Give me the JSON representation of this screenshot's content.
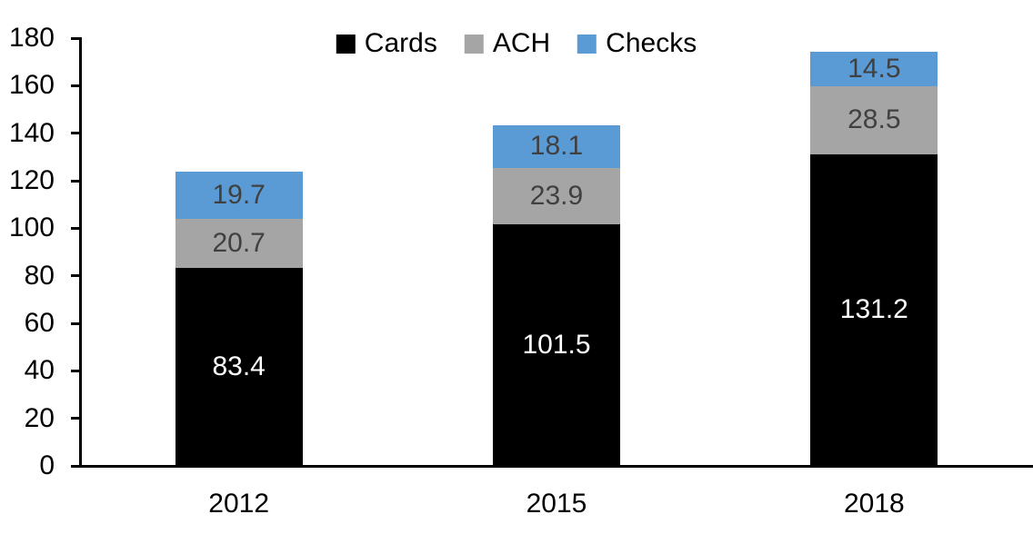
{
  "chart_data": {
    "type": "bar",
    "stacked": true,
    "title": "",
    "xlabel": "",
    "ylabel": "",
    "categories": [
      "2012",
      "2015",
      "2018"
    ],
    "series": [
      {
        "name": "Cards",
        "color": "#000000",
        "label_color": "#FFFFFF",
        "values": [
          83.4,
          101.5,
          131.2
        ]
      },
      {
        "name": "ACH",
        "color": "#A5A5A5",
        "label_color": "#404040",
        "values": [
          20.7,
          23.9,
          28.5
        ]
      },
      {
        "name": "Checks",
        "color": "#5B9BD5",
        "label_color": "#404040",
        "values": [
          19.7,
          18.1,
          14.5
        ]
      }
    ],
    "ylim": [
      0,
      180
    ],
    "yticks": [
      0,
      20,
      40,
      60,
      80,
      100,
      120,
      140,
      160,
      180
    ],
    "grid": false,
    "value_labels": true,
    "legend_position": "top-center",
    "axis_color": "#000000",
    "background": "#FFFFFF",
    "tick_label_color": "#000000"
  }
}
